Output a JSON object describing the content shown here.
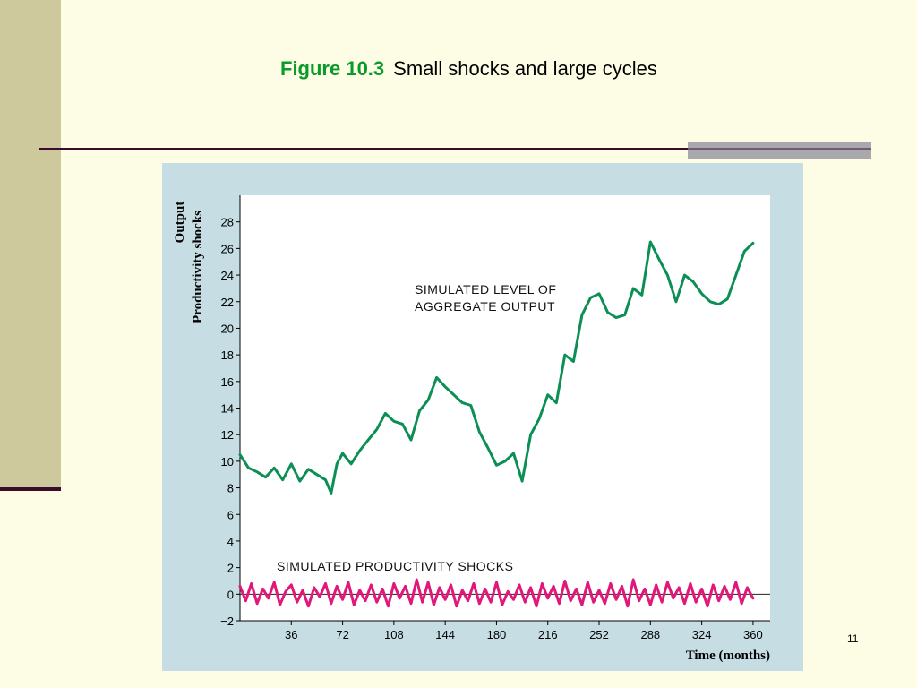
{
  "slide": {
    "figure_label": "Figure 10.3",
    "title": "Small shocks and large cycles",
    "page_number": "11"
  },
  "colors": {
    "background": "#fdfde6",
    "left_band": "#cdc99c",
    "rule": "#3b0b2b",
    "panel": "#c5dde3",
    "output_series": "#0c8f55",
    "shock_series": "#e0187a",
    "figure_label": "#0a9a2a"
  },
  "chart_data": {
    "type": "line",
    "ylabel_top": "Output",
    "ylabel_bottom": "Productivity shocks",
    "xlabel": "Time (months)",
    "xlim": [
      0,
      372
    ],
    "ylim": [
      -2,
      30
    ],
    "x_ticks": [
      36,
      72,
      108,
      144,
      180,
      216,
      252,
      288,
      324,
      360
    ],
    "y_ticks": [
      -2,
      0,
      2,
      4,
      6,
      8,
      10,
      12,
      14,
      16,
      18,
      20,
      22,
      24,
      26,
      28
    ],
    "y_tick_labels": [
      "−2",
      "0",
      "2",
      "4",
      "6",
      "8",
      "10",
      "12",
      "14",
      "16",
      "18",
      "20",
      "22",
      "24",
      "26",
      "28"
    ],
    "zero_line": true,
    "grid": false,
    "series": [
      {
        "name": "SIMULATED LEVEL OF AGGREGATE OUTPUT",
        "label_lines": [
          "SIMULATED LEVEL OF",
          "AGGREGATE OUTPUT"
        ],
        "color": "#0c8f55",
        "x": [
          0,
          6,
          12,
          18,
          24,
          30,
          36,
          42,
          48,
          54,
          60,
          64,
          68,
          72,
          78,
          84,
          90,
          96,
          102,
          108,
          114,
          120,
          126,
          132,
          138,
          144,
          150,
          156,
          162,
          168,
          174,
          180,
          186,
          192,
          198,
          204,
          210,
          216,
          222,
          228,
          234,
          240,
          246,
          252,
          258,
          264,
          270,
          276,
          282,
          288,
          294,
          300,
          306,
          312,
          318,
          324,
          330,
          336,
          342,
          348,
          354,
          360
        ],
        "values": [
          10.5,
          9.5,
          9.2,
          8.8,
          9.5,
          8.6,
          9.8,
          8.5,
          9.4,
          9.0,
          8.6,
          7.6,
          9.8,
          10.6,
          9.8,
          10.8,
          11.6,
          12.4,
          13.6,
          13.0,
          12.8,
          11.6,
          13.8,
          14.6,
          16.3,
          15.6,
          15.0,
          14.4,
          14.2,
          12.2,
          11.0,
          9.7,
          10.0,
          10.6,
          8.5,
          12.0,
          13.2,
          15.0,
          14.4,
          18.0,
          17.5,
          21.0,
          22.3,
          22.6,
          21.2,
          20.8,
          21.0,
          23.0,
          22.5,
          26.5,
          25.2,
          24.0,
          22.0,
          24.0,
          23.5,
          22.6,
          22.0,
          21.8,
          22.2,
          24.0,
          25.8,
          26.4
        ]
      },
      {
        "name": "SIMULATED PRODUCTIVITY SHOCKS",
        "label_lines": [
          "SIMULATED PRODUCTIVITY SHOCKS"
        ],
        "color": "#e0187a",
        "x": [
          0,
          4,
          8,
          12,
          16,
          20,
          24,
          28,
          32,
          36,
          40,
          44,
          48,
          52,
          56,
          60,
          64,
          68,
          72,
          76,
          80,
          84,
          88,
          92,
          96,
          100,
          104,
          108,
          112,
          116,
          120,
          124,
          128,
          132,
          136,
          140,
          144,
          148,
          152,
          156,
          160,
          164,
          168,
          172,
          176,
          180,
          184,
          188,
          192,
          196,
          200,
          204,
          208,
          212,
          216,
          220,
          224,
          228,
          232,
          236,
          240,
          244,
          248,
          252,
          256,
          260,
          264,
          268,
          272,
          276,
          280,
          284,
          288,
          292,
          296,
          300,
          304,
          308,
          312,
          316,
          320,
          324,
          328,
          332,
          336,
          340,
          344,
          348,
          352,
          356,
          360
        ],
        "values": [
          0.6,
          -0.5,
          0.8,
          -0.7,
          0.4,
          -0.3,
          0.9,
          -0.8,
          0.2,
          0.7,
          -0.6,
          0.3,
          -0.9,
          0.5,
          -0.2,
          0.8,
          -0.7,
          0.6,
          -0.4,
          0.9,
          -0.8,
          0.3,
          -0.5,
          0.7,
          -0.6,
          0.4,
          -0.9,
          0.8,
          -0.3,
          0.6,
          -0.7,
          1.1,
          -0.6,
          0.9,
          -0.8,
          0.5,
          -0.4,
          0.7,
          -0.9,
          0.3,
          -0.5,
          0.8,
          -0.7,
          0.4,
          -0.6,
          0.9,
          -0.8,
          0.2,
          -0.4,
          0.7,
          -0.6,
          0.5,
          -0.9,
          0.8,
          -0.3,
          0.6,
          -0.7,
          1.0,
          -0.5,
          0.4,
          -0.8,
          0.9,
          -0.6,
          0.3,
          -0.7,
          0.8,
          -0.4,
          0.6,
          -0.9,
          1.1,
          -0.5,
          0.4,
          -0.8,
          0.7,
          -0.6,
          0.9,
          -0.3,
          0.5,
          -0.7,
          0.8,
          -0.6,
          0.4,
          -0.9,
          0.7,
          -0.5,
          0.6,
          -0.4,
          0.9,
          -0.7,
          0.5,
          -0.3
        ]
      }
    ]
  }
}
